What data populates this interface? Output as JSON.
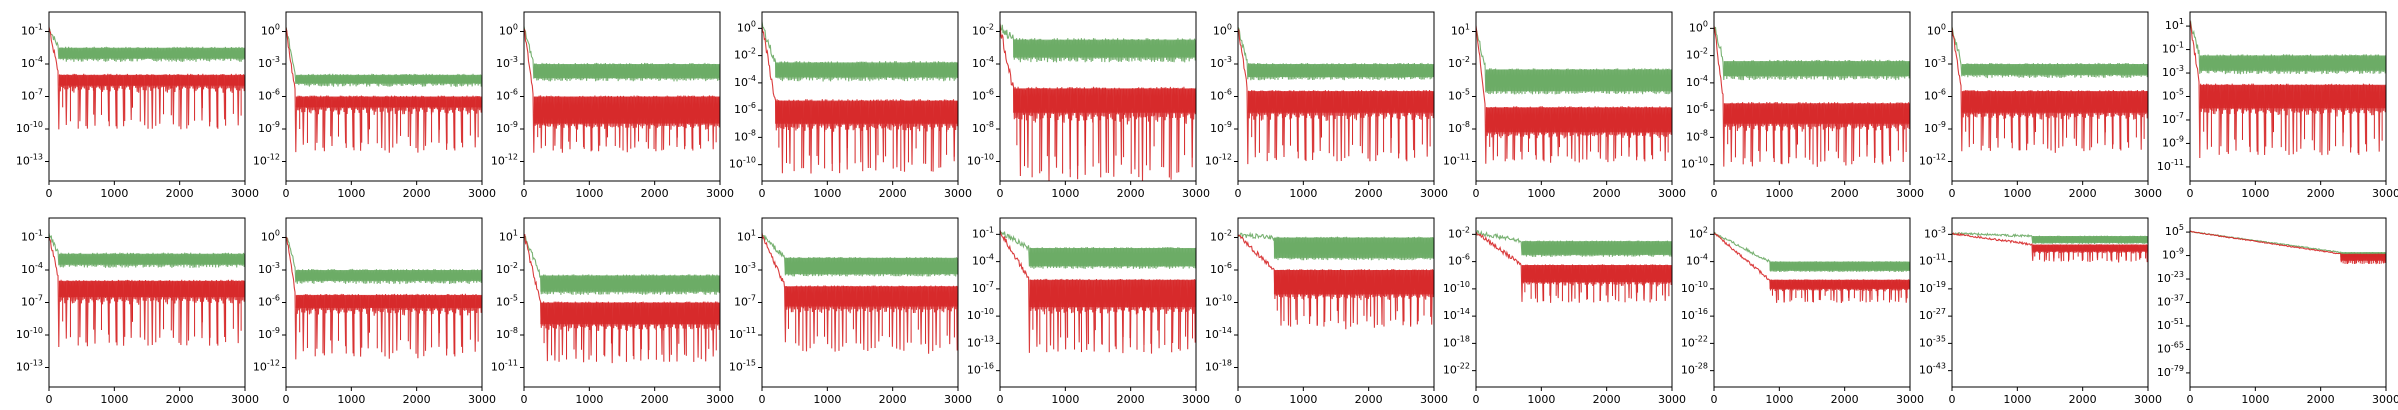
{
  "chart_data": [
    {
      "type": "line",
      "row": 0,
      "col": 0,
      "yticks": [
        "10^{-1}",
        "10^{-4}",
        "10^{-7}",
        "10^{-10}",
        "10^{-13}"
      ],
      "xticks": [
        "0",
        "1000",
        "2000",
        "3000"
      ],
      "xlim": [
        0,
        3000
      ],
      "series": [
        {
          "color": "#6aaa64",
          "band": "upper",
          "top": "10^{-2.5}",
          "bottom": "10^{-3.5}",
          "spike_to": "10^{-3.5}",
          "drop_at": 150
        },
        {
          "color": "#d62728",
          "band": "lower",
          "top": "10^{-5}",
          "bottom": "10^{-6}",
          "spike_to": "10^{-10}",
          "drop_at": 150
        }
      ]
    },
    {
      "type": "line",
      "row": 0,
      "col": 1,
      "yticks": [
        "10^{0}",
        "10^{-3}",
        "10^{-6}",
        "10^{-9}",
        "10^{-12}"
      ],
      "xticks": [
        "0",
        "1000",
        "2000",
        "3000"
      ],
      "xlim": [
        0,
        3000
      ],
      "series": [
        {
          "color": "#6aaa64",
          "band": "upper",
          "top": "10^{-4}",
          "bottom": "10^{-4.8}",
          "spike_to": "10^{-4.8}",
          "drop_at": 150
        },
        {
          "color": "#d62728",
          "band": "lower",
          "top": "10^{-6}",
          "bottom": "10^{-7}",
          "spike_to": "10^{-11}",
          "drop_at": 150
        }
      ]
    },
    {
      "type": "line",
      "row": 0,
      "col": 2,
      "yticks": [
        "10^{0}",
        "10^{-3}",
        "10^{-6}",
        "10^{-9}",
        "10^{-12}"
      ],
      "xticks": [
        "0",
        "1000",
        "2000",
        "3000"
      ],
      "xlim": [
        0,
        3000
      ],
      "series": [
        {
          "color": "#6aaa64",
          "band": "upper",
          "top": "10^{-3}",
          "bottom": "10^{-4.3}",
          "spike_to": "10^{-4.3}",
          "drop_at": 150
        },
        {
          "color": "#d62728",
          "band": "lower",
          "top": "10^{-6}",
          "bottom": "10^{-8.5}",
          "spike_to": "10^{-11}",
          "drop_at": 150
        }
      ]
    },
    {
      "type": "line",
      "row": 0,
      "col": 3,
      "yticks": [
        "10^{0}",
        "10^{-2}",
        "10^{-4}",
        "10^{-6}",
        "10^{-8}",
        "10^{-10}"
      ],
      "xticks": [
        "0",
        "1000",
        "2000",
        "3000"
      ],
      "xlim": [
        0,
        3000
      ],
      "series": [
        {
          "color": "#6aaa64",
          "band": "upper",
          "top": "10^{-2.5}",
          "bottom": "10^{-3.6}",
          "spike_to": "10^{-3.6}",
          "drop_at": 200
        },
        {
          "color": "#d62728",
          "band": "lower",
          "top": "10^{-5.3}",
          "bottom": "10^{-7}",
          "spike_to": "10^{-10.5}",
          "drop_at": 200
        }
      ]
    },
    {
      "type": "line",
      "row": 0,
      "col": 4,
      "yticks": [
        "10^{-2}",
        "10^{-4}",
        "10^{-6}",
        "10^{-8}",
        "10^{-10}"
      ],
      "xticks": [
        "0",
        "1000",
        "2000",
        "3000"
      ],
      "xlim": [
        0,
        3000
      ],
      "series": [
        {
          "color": "#6aaa64",
          "band": "upper",
          "top": "10^{-2.5}",
          "bottom": "10^{-3.6}",
          "spike_to": "10^{-3.6}",
          "drop_at": 200
        },
        {
          "color": "#d62728",
          "band": "lower",
          "top": "10^{-5.5}",
          "bottom": "10^{-7}",
          "spike_to": "10^{-11}",
          "drop_at": 200
        }
      ]
    },
    {
      "type": "line",
      "row": 0,
      "col": 5,
      "yticks": [
        "10^{0}",
        "10^{-3}",
        "10^{-6}",
        "10^{-9}",
        "10^{-12}"
      ],
      "xticks": [
        "0",
        "1000",
        "2000",
        "3000"
      ],
      "xlim": [
        0,
        3000
      ],
      "series": [
        {
          "color": "#6aaa64",
          "band": "upper",
          "top": "10^{-3}",
          "bottom": "10^{-4.2}",
          "spike_to": "10^{-4.2}",
          "drop_at": 150
        },
        {
          "color": "#d62728",
          "band": "lower",
          "top": "10^{-5.5}",
          "bottom": "10^{-7.5}",
          "spike_to": "10^{-12}",
          "drop_at": 150
        }
      ]
    },
    {
      "type": "line",
      "row": 0,
      "col": 6,
      "yticks": [
        "10^{1}",
        "10^{-2}",
        "10^{-5}",
        "10^{-8}",
        "10^{-11}"
      ],
      "xticks": [
        "0",
        "1000",
        "2000",
        "3000"
      ],
      "xlim": [
        0,
        3000
      ],
      "series": [
        {
          "color": "#6aaa64",
          "band": "upper",
          "top": "10^{-2.5}",
          "bottom": "10^{-4.5}",
          "spike_to": "10^{-4.5}",
          "drop_at": 150
        },
        {
          "color": "#d62728",
          "band": "lower",
          "top": "10^{-6}",
          "bottom": "10^{-8.3}",
          "spike_to": "10^{-11}",
          "drop_at": 150
        }
      ]
    },
    {
      "type": "line",
      "row": 0,
      "col": 7,
      "yticks": [
        "10^{0}",
        "10^{-2}",
        "10^{-4}",
        "10^{-6}",
        "10^{-8}",
        "10^{-10}"
      ],
      "xticks": [
        "0",
        "1000",
        "2000",
        "3000"
      ],
      "xlim": [
        0,
        3000
      ],
      "series": [
        {
          "color": "#6aaa64",
          "band": "upper",
          "top": "10^{-2.4}",
          "bottom": "10^{-3.5}",
          "spike_to": "10^{-3.5}",
          "drop_at": 150
        },
        {
          "color": "#d62728",
          "band": "lower",
          "top": "10^{-5.5}",
          "bottom": "10^{-7}",
          "spike_to": "10^{-10}",
          "drop_at": 150
        }
      ]
    },
    {
      "type": "line",
      "row": 0,
      "col": 8,
      "yticks": [
        "10^{0}",
        "10^{-3}",
        "10^{-6}",
        "10^{-9}",
        "10^{-12}"
      ],
      "xticks": [
        "0",
        "1000",
        "2000",
        "3000"
      ],
      "xlim": [
        0,
        3000
      ],
      "series": [
        {
          "color": "#6aaa64",
          "band": "upper",
          "top": "10^{-3}",
          "bottom": "10^{-4}",
          "spike_to": "10^{-4}",
          "drop_at": 150
        },
        {
          "color": "#d62728",
          "band": "lower",
          "top": "10^{-5.5}",
          "bottom": "10^{-7.5}",
          "spike_to": "10^{-11}",
          "drop_at": 150
        }
      ]
    },
    {
      "type": "line",
      "row": 0,
      "col": 9,
      "yticks": [
        "10^{1}",
        "10^{-1}",
        "10^{-3}",
        "10^{-5}",
        "10^{-7}",
        "10^{-9}",
        "10^{-11}"
      ],
      "xticks": [
        "0",
        "1000",
        "2000",
        "3000"
      ],
      "xlim": [
        0,
        3000
      ],
      "series": [
        {
          "color": "#6aaa64",
          "band": "upper",
          "top": "10^{-1.5}",
          "bottom": "10^{-2.8}",
          "spike_to": "10^{-2.8}",
          "drop_at": 150
        },
        {
          "color": "#d62728",
          "band": "lower",
          "top": "10^{-4}",
          "bottom": "10^{-6}",
          "spike_to": "10^{-10}",
          "drop_at": 150
        }
      ]
    },
    {
      "type": "line",
      "row": 1,
      "col": 0,
      "yticks": [
        "10^{-1}",
        "10^{-4}",
        "10^{-7}",
        "10^{-10}",
        "10^{-13}"
      ],
      "xticks": [
        "0",
        "1000",
        "2000",
        "3000"
      ],
      "xlim": [
        0,
        3000
      ],
      "series": [
        {
          "color": "#6aaa64",
          "band": "upper",
          "top": "10^{-2.5}",
          "bottom": "10^{-3.5}",
          "spike_to": "10^{-3.5}",
          "drop_at": 150
        },
        {
          "color": "#d62728",
          "band": "lower",
          "top": "10^{-5}",
          "bottom": "10^{-6.5}",
          "spike_to": "10^{-11}",
          "drop_at": 150
        }
      ]
    },
    {
      "type": "line",
      "row": 1,
      "col": 1,
      "yticks": [
        "10^{0}",
        "10^{-3}",
        "10^{-6}",
        "10^{-9}",
        "10^{-12}"
      ],
      "xticks": [
        "0",
        "1000",
        "2000",
        "3000"
      ],
      "xlim": [
        0,
        3000
      ],
      "series": [
        {
          "color": "#6aaa64",
          "band": "upper",
          "top": "10^{-3}",
          "bottom": "10^{-4}",
          "spike_to": "10^{-4}",
          "drop_at": 150
        },
        {
          "color": "#d62728",
          "band": "lower",
          "top": "10^{-5.3}",
          "bottom": "10^{-6.5}",
          "spike_to": "10^{-11}",
          "drop_at": 150
        }
      ]
    },
    {
      "type": "line",
      "row": 1,
      "col": 2,
      "yticks": [
        "10^{1}",
        "10^{-2}",
        "10^{-5}",
        "10^{-8}",
        "10^{-11}"
      ],
      "xticks": [
        "0",
        "1000",
        "2000",
        "3000"
      ],
      "xlim": [
        0,
        3000
      ],
      "series": [
        {
          "color": "#6aaa64",
          "band": "upper",
          "top": "10^{-2.5}",
          "bottom": "10^{-4}",
          "spike_to": "10^{-4}",
          "drop_at": 250
        },
        {
          "color": "#d62728",
          "band": "lower",
          "top": "10^{-5}",
          "bottom": "10^{-7}",
          "spike_to": "10^{-10.5}",
          "drop_at": 250
        }
      ]
    },
    {
      "type": "line",
      "row": 1,
      "col": 3,
      "yticks": [
        "10^{1}",
        "10^{-3}",
        "10^{-7}",
        "10^{-11}",
        "10^{-15}"
      ],
      "xticks": [
        "0",
        "1000",
        "2000",
        "3000"
      ],
      "xlim": [
        0,
        3000
      ],
      "series": [
        {
          "color": "#6aaa64",
          "band": "upper",
          "top": "10^{-1.5}",
          "bottom": "10^{-3.5}",
          "spike_to": "10^{-3.5}",
          "drop_at": 350
        },
        {
          "color": "#d62728",
          "band": "lower",
          "top": "10^{-5}",
          "bottom": "10^{-7.5}",
          "spike_to": "10^{-13}",
          "drop_at": 350
        }
      ]
    },
    {
      "type": "line",
      "row": 1,
      "col": 4,
      "yticks": [
        "10^{-1}",
        "10^{-4}",
        "10^{-7}",
        "10^{-10}",
        "10^{-13}",
        "10^{-16}"
      ],
      "xticks": [
        "0",
        "1000",
        "2000",
        "3000"
      ],
      "xlim": [
        0,
        3000
      ],
      "series": [
        {
          "color": "#6aaa64",
          "band": "upper",
          "top": "10^{-2.5}",
          "bottom": "10^{-4.5}",
          "spike_to": "10^{-4.5}",
          "drop_at": 450
        },
        {
          "color": "#d62728",
          "band": "lower",
          "top": "10^{-6}",
          "bottom": "10^{-9}",
          "spike_to": "10^{-14}",
          "drop_at": 450
        }
      ]
    },
    {
      "type": "line",
      "row": 1,
      "col": 5,
      "yticks": [
        "10^{-2}",
        "10^{-6}",
        "10^{-10}",
        "10^{-14}",
        "10^{-18}"
      ],
      "xticks": [
        "0",
        "1000",
        "2000",
        "3000"
      ],
      "xlim": [
        0,
        3000
      ],
      "series": [
        {
          "color": "#6aaa64",
          "band": "upper",
          "top": "10^{-2}",
          "bottom": "10^{-4.5}",
          "spike_to": "10^{-4.5}",
          "drop_at": 550
        },
        {
          "color": "#d62728",
          "band": "lower",
          "top": "10^{-6}",
          "bottom": "10^{-9}",
          "spike_to": "10^{-13}",
          "drop_at": 550
        }
      ]
    },
    {
      "type": "line",
      "row": 1,
      "col": 6,
      "yticks": [
        "10^{-2}",
        "10^{-6}",
        "10^{-10}",
        "10^{-14}",
        "10^{-18}",
        "10^{-22}"
      ],
      "xticks": [
        "0",
        "1000",
        "2000",
        "3000"
      ],
      "xlim": [
        0,
        3000
      ],
      "series": [
        {
          "color": "#6aaa64",
          "band": "upper",
          "top": "10^{-3}",
          "bottom": "10^{-5}",
          "spike_to": "10^{-5}",
          "drop_at": 700
        },
        {
          "color": "#d62728",
          "band": "lower",
          "top": "10^{-6.5}",
          "bottom": "10^{-9}",
          "spike_to": "10^{-12}",
          "drop_at": 700
        }
      ]
    },
    {
      "type": "line",
      "row": 1,
      "col": 7,
      "yticks": [
        "10^{2}",
        "10^{-4}",
        "10^{-10}",
        "10^{-16}",
        "10^{-22}",
        "10^{-28}"
      ],
      "xticks": [
        "0",
        "1000",
        "2000",
        "3000"
      ],
      "xlim": [
        0,
        3000
      ],
      "series": [
        {
          "color": "#6aaa64",
          "band": "upper",
          "top": "10^{-4}",
          "bottom": "10^{-6}",
          "spike_to": "10^{-6}",
          "drop_at": 850
        },
        {
          "color": "#d62728",
          "band": "lower",
          "top": "10^{-8}",
          "bottom": "10^{-10}",
          "spike_to": "10^{-13}",
          "drop_at": 850
        }
      ]
    },
    {
      "type": "line",
      "row": 1,
      "col": 8,
      "yticks": [
        "10^{-3}",
        "10^{-11}",
        "10^{-19}",
        "10^{-27}",
        "10^{-35}",
        "10^{-43}"
      ],
      "xticks": [
        "0",
        "1000",
        "2000",
        "3000"
      ],
      "xlim": [
        0,
        3000
      ],
      "series": [
        {
          "color": "#6aaa64",
          "band": "upper",
          "top": "10^{-3.5}",
          "bottom": "10^{-5.5}",
          "spike_to": "10^{-5.5}",
          "drop_at": 1230
        },
        {
          "color": "#d62728",
          "band": "lower",
          "top": "10^{-6}",
          "bottom": "10^{-8}",
          "spike_to": "10^{-11}",
          "drop_at": 1230
        }
      ]
    },
    {
      "type": "line",
      "row": 1,
      "col": 9,
      "yticks": [
        "10^{5}",
        "10^{-9}",
        "10^{-23}",
        "10^{-37}",
        "10^{-51}",
        "10^{-65}",
        "10^{-79}"
      ],
      "xticks": [
        "0",
        "1000",
        "2000",
        "3000"
      ],
      "xlim": [
        0,
        3000
      ],
      "series": [
        {
          "color": "#6aaa64",
          "band": "upper",
          "top": "10^{-7}",
          "bottom": "10^{-10}",
          "spike_to": "10^{-10}",
          "drop_at": 2300
        },
        {
          "color": "#d62728",
          "band": "lower",
          "top": "10^{-8}",
          "bottom": "10^{-12}",
          "spike_to": "10^{-14}",
          "drop_at": 2300
        }
      ]
    }
  ]
}
